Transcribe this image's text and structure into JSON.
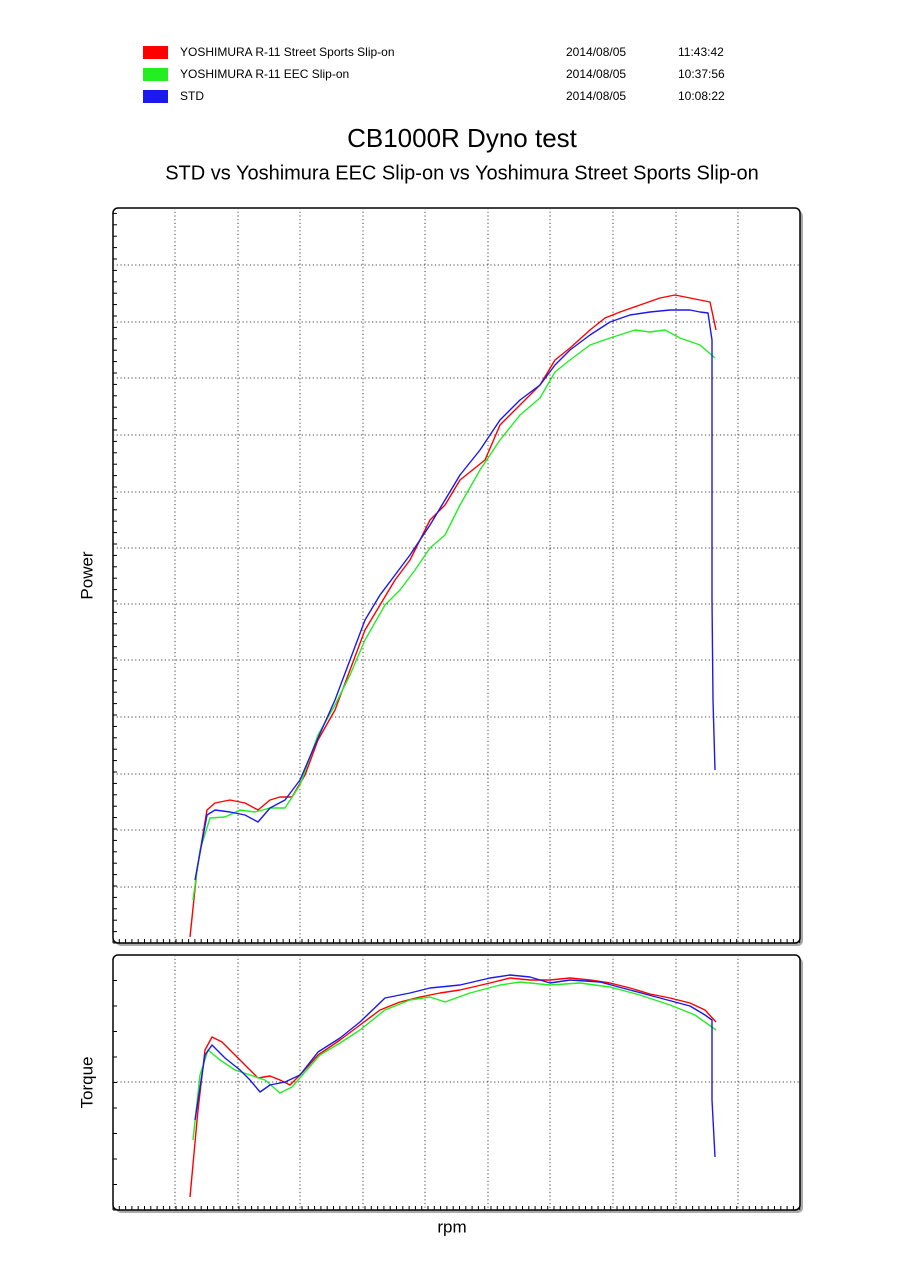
{
  "title": "CB1000R Dyno test",
  "subtitle": "STD vs Yoshimura EEC Slip-on vs Yoshimura Street Sports Slip-on",
  "chart_data": [
    {
      "type": "line",
      "ylabel": "Power",
      "xlim": [
        0,
        687
      ],
      "xticks": [
        62,
        125,
        187,
        250,
        312,
        375,
        437,
        500,
        563,
        625
      ],
      "ylim": [
        0,
        735
      ],
      "yticks": [
        56,
        113,
        169,
        226,
        283,
        339,
        395,
        451,
        508,
        565,
        621,
        678
      ],
      "grid": true,
      "series": [
        {
          "name": "YOSHIMURA R-11 Street Sports Slip-on",
          "date": "2014/08/05",
          "time": "11:43:42",
          "color": "#ff0000",
          "x": [
            77,
            84,
            94,
            102,
            117,
            132,
            145,
            157,
            167,
            179,
            192,
            205,
            222,
            237,
            252,
            267,
            282,
            297,
            317,
            332,
            347,
            372,
            387,
            407,
            427,
            442,
            457,
            477,
            492,
            507,
            527,
            547,
            562,
            577,
            587,
            597,
            603
          ],
          "values": [
            6,
            73,
            133,
            140,
            143,
            140,
            133,
            143,
            146,
            146,
            168,
            203,
            233,
            273,
            313,
            338,
            363,
            383,
            423,
            438,
            463,
            483,
            518,
            538,
            558,
            583,
            595,
            613,
            625,
            631,
            638,
            645,
            648,
            645,
            643,
            641,
            613
          ]
        },
        {
          "name": "YOSHIMURA R-11 EEC Slip-on",
          "date": "2014/08/05",
          "time": "10:37:56",
          "color": "#22ee22",
          "x": [
            80,
            87,
            97,
            112,
            127,
            142,
            157,
            172,
            187,
            205,
            222,
            237,
            252,
            272,
            287,
            302,
            317,
            332,
            347,
            367,
            387,
            407,
            427,
            442,
            457,
            477,
            497,
            522,
            537,
            552,
            567,
            587,
            602
          ],
          "values": [
            43,
            93,
            125,
            126,
            133,
            131,
            135,
            135,
            158,
            208,
            238,
            268,
            303,
            338,
            353,
            373,
            395,
            408,
            438,
            473,
            503,
            528,
            545,
            571,
            583,
            598,
            605,
            613,
            611,
            613,
            605,
            598,
            585
          ]
        },
        {
          "name": "STD",
          "date": "2014/08/05",
          "time": "10:08:22",
          "color": "#1a1aee",
          "x": [
            82,
            94,
            102,
            117,
            132,
            145,
            157,
            172,
            187,
            205,
            222,
            237,
            252,
            267,
            282,
            297,
            317,
            332,
            347,
            367,
            387,
            407,
            427,
            442,
            457,
            477,
            497,
            517,
            537,
            557,
            577,
            587,
            595,
            599,
            599,
            600,
            602
          ],
          "values": [
            63,
            128,
            133,
            131,
            128,
            121,
            135,
            143,
            163,
            205,
            243,
            283,
            323,
            348,
            368,
            388,
            418,
            443,
            468,
            493,
            523,
            543,
            558,
            578,
            593,
            608,
            621,
            628,
            631,
            633,
            633,
            631,
            630,
            603,
            343,
            243,
            173
          ]
        }
      ]
    },
    {
      "type": "line",
      "ylabel": "Torque",
      "xlabel": "rpm",
      "xlim": [
        0,
        687
      ],
      "xticks": [
        62,
        125,
        187,
        250,
        312,
        375,
        437,
        500,
        563,
        625
      ],
      "ylim": [
        0,
        255
      ],
      "yticks": [
        128
      ],
      "grid": true,
      "series": [
        {
          "color": "#ff0000",
          "x": [
            77,
            85,
            92,
            99,
            109,
            122,
            135,
            145,
            157,
            167,
            177,
            187,
            205,
            227,
            247,
            267,
            287,
            307,
            327,
            347,
            377,
            397,
            417,
            437,
            457,
            477,
            497,
            517,
            537,
            557,
            577,
            592,
            603
          ],
          "values": [
            13,
            100,
            160,
            173,
            168,
            155,
            142,
            132,
            134,
            130,
            125,
            135,
            155,
            170,
            185,
            200,
            208,
            213,
            217,
            220,
            227,
            232,
            230,
            230,
            232,
            230,
            227,
            222,
            216,
            212,
            207,
            200,
            188
          ]
        },
        {
          "color": "#22ee22",
          "x": [
            80,
            87,
            95,
            107,
            122,
            137,
            152,
            167,
            179,
            192,
            207,
            227,
            247,
            272,
            297,
            317,
            332,
            357,
            387,
            407,
            437,
            467,
            497,
            527,
            557,
            582,
            603
          ],
          "values": [
            70,
            135,
            160,
            150,
            140,
            135,
            130,
            117,
            123,
            138,
            155,
            167,
            180,
            200,
            210,
            213,
            208,
            217,
            225,
            228,
            225,
            227,
            223,
            215,
            205,
            195,
            180
          ]
        },
        {
          "color": "#1a1aee",
          "x": [
            82,
            92,
            99,
            112,
            127,
            137,
            147,
            157,
            172,
            187,
            205,
            227,
            247,
            272,
            297,
            317,
            347,
            377,
            397,
            417,
            437,
            457,
            487,
            517,
            547,
            577,
            592,
            599,
            599,
            602
          ],
          "values": [
            90,
            155,
            165,
            152,
            140,
            130,
            118,
            125,
            128,
            135,
            158,
            172,
            188,
            212,
            217,
            222,
            225,
            232,
            235,
            233,
            227,
            230,
            228,
            220,
            212,
            204,
            195,
            190,
            110,
            53
          ]
        }
      ]
    }
  ]
}
